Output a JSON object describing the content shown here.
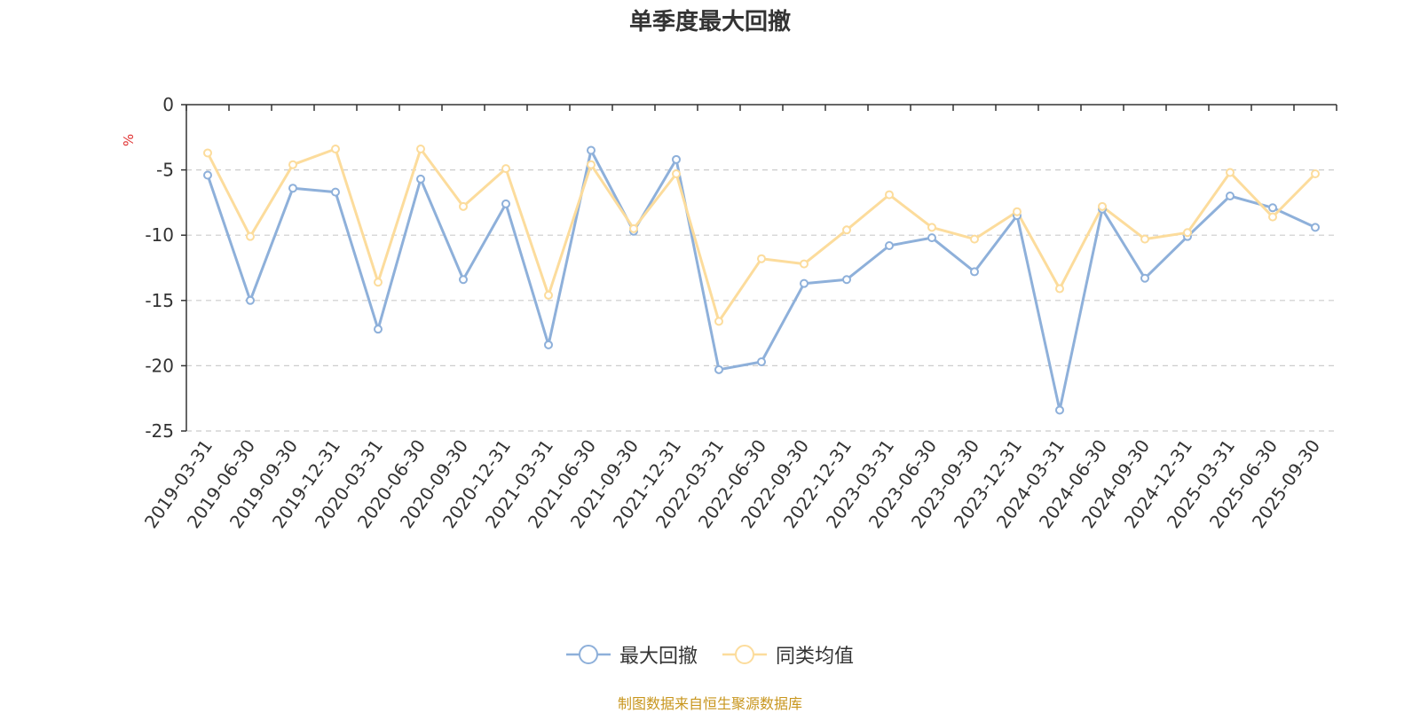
{
  "chart_data": {
    "type": "line",
    "title": "单季度最大回撤",
    "ylabel": "%",
    "ylim": [
      -25,
      0
    ],
    "yticks": [
      0,
      -5,
      -10,
      -15,
      -20,
      -25
    ],
    "grid": true,
    "legend_position": "bottom-center",
    "categories": [
      "2019-03-31",
      "2019-06-30",
      "2019-09-30",
      "2019-12-31",
      "2020-03-31",
      "2020-06-30",
      "2020-09-30",
      "2020-12-31",
      "2021-03-31",
      "2021-06-30",
      "2021-09-30",
      "2021-12-31",
      "2022-03-31",
      "2022-06-30",
      "2022-09-30",
      "2022-12-31",
      "2023-03-31",
      "2023-06-30",
      "2023-09-30",
      "2023-12-31",
      "2024-03-31",
      "2024-06-30",
      "2024-09-30",
      "2024-12-31",
      "2025-03-31",
      "2025-06-30",
      "2025-09-30"
    ],
    "series": [
      {
        "name": "最大回撤",
        "color": "#8eb0da",
        "values": [
          -5.4,
          -15.0,
          -6.4,
          -6.7,
          -17.2,
          -5.7,
          -13.4,
          -7.6,
          -18.4,
          -3.5,
          -9.7,
          -4.2,
          -20.3,
          -19.7,
          -13.7,
          -13.4,
          -10.8,
          -10.2,
          -12.8,
          -8.5,
          -23.4,
          -8.0,
          -13.3,
          -10.1,
          -7.0,
          -7.9,
          -9.4
        ]
      },
      {
        "name": "同类均值",
        "color": "#fcdc9c",
        "values": [
          -3.7,
          -10.1,
          -4.6,
          -3.4,
          -13.6,
          -3.4,
          -7.8,
          -4.9,
          -14.6,
          -4.6,
          -9.5,
          -5.3,
          -16.6,
          -11.8,
          -12.2,
          -9.6,
          -6.9,
          -9.4,
          -10.3,
          -8.2,
          -14.1,
          -7.8,
          -10.3,
          -9.8,
          -5.2,
          -8.6,
          -5.3
        ]
      }
    ]
  },
  "source_note": "制图数据来自恒生聚源数据库",
  "colors": {
    "axis": "#333333",
    "grid": "#cccccc",
    "ylabel": "#e03030",
    "source": "#c8961e"
  }
}
